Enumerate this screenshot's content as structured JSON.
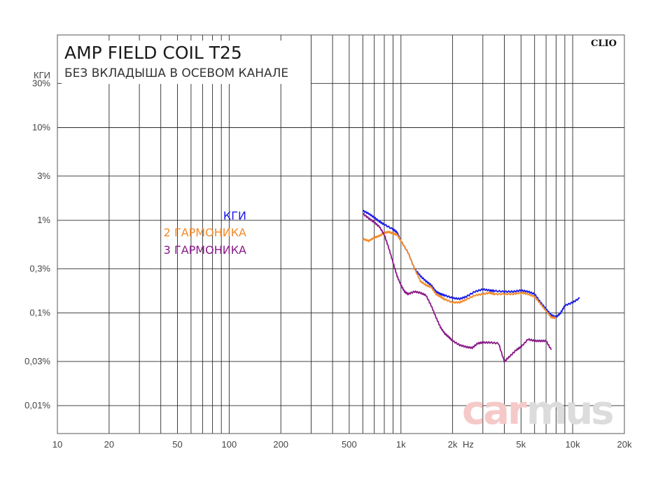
{
  "chart_data": {
    "type": "line",
    "title": "AMP FIELD COIL T25",
    "subtitle": "БЕЗ ВКЛАДЫША В ОСЕВОМ КАНАЛЕ",
    "ylabel": "КГИ",
    "xunit": "Hz",
    "brand": "CLIO",
    "watermark": [
      "car",
      "mus"
    ],
    "xscale": "log",
    "yscale": "log",
    "xlim": [
      10,
      20000
    ],
    "ylim": [
      0.005,
      100
    ],
    "grid": true,
    "x_ticks": [
      {
        "v": 10,
        "label": "10"
      },
      {
        "v": 20,
        "label": "20"
      },
      {
        "v": 50,
        "label": "50"
      },
      {
        "v": 100,
        "label": "100"
      },
      {
        "v": 200,
        "label": "200"
      },
      {
        "v": 500,
        "label": "500"
      },
      {
        "v": 1000,
        "label": "1k"
      },
      {
        "v": 2000,
        "label": "2k"
      },
      {
        "v": 5000,
        "label": "5k"
      },
      {
        "v": 10000,
        "label": "10k"
      },
      {
        "v": 20000,
        "label": "20k"
      }
    ],
    "y_ticks": [
      {
        "v": 30,
        "label": "30%"
      },
      {
        "v": 10,
        "label": "10%"
      },
      {
        "v": 3,
        "label": "3%"
      },
      {
        "v": 1,
        "label": "1%"
      },
      {
        "v": 0.3,
        "label": "0,3%"
      },
      {
        "v": 0.1,
        "label": "0,1%"
      },
      {
        "v": 0.03,
        "label": "0,03%"
      },
      {
        "v": 0.01,
        "label": "0,01%"
      }
    ],
    "legend_position": "center-left",
    "series": [
      {
        "name": "КГИ",
        "color": "#1a1ae6",
        "points": [
          [
            600,
            1.27
          ],
          [
            650,
            1.18
          ],
          [
            700,
            1.07
          ],
          [
            750,
            0.97
          ],
          [
            800,
            0.9
          ],
          [
            900,
            0.8
          ],
          [
            950,
            0.74
          ],
          [
            1000,
            0.6
          ],
          [
            1100,
            0.45
          ],
          [
            1200,
            0.3
          ],
          [
            1300,
            0.25
          ],
          [
            1400,
            0.22
          ],
          [
            1500,
            0.2
          ],
          [
            1600,
            0.17
          ],
          [
            1700,
            0.16
          ],
          [
            1800,
            0.155
          ],
          [
            2000,
            0.145
          ],
          [
            2200,
            0.142
          ],
          [
            2400,
            0.15
          ],
          [
            2700,
            0.17
          ],
          [
            3000,
            0.18
          ],
          [
            3300,
            0.175
          ],
          [
            3500,
            0.173
          ],
          [
            4000,
            0.17
          ],
          [
            4500,
            0.17
          ],
          [
            5000,
            0.175
          ],
          [
            5500,
            0.17
          ],
          [
            6000,
            0.16
          ],
          [
            6500,
            0.13
          ],
          [
            7000,
            0.11
          ],
          [
            7500,
            0.095
          ],
          [
            8000,
            0.09
          ],
          [
            8500,
            0.1
          ],
          [
            9000,
            0.12
          ],
          [
            10000,
            0.13
          ],
          [
            11000,
            0.145
          ]
        ]
      },
      {
        "name": "2 ГАРМОНИКА",
        "color": "#f28a2a",
        "points": [
          [
            600,
            0.63
          ],
          [
            650,
            0.6
          ],
          [
            700,
            0.65
          ],
          [
            750,
            0.68
          ],
          [
            800,
            0.73
          ],
          [
            850,
            0.75
          ],
          [
            900,
            0.72
          ],
          [
            950,
            0.7
          ],
          [
            1000,
            0.6
          ],
          [
            1100,
            0.45
          ],
          [
            1200,
            0.3
          ],
          [
            1300,
            0.22
          ],
          [
            1400,
            0.2
          ],
          [
            1500,
            0.19
          ],
          [
            1600,
            0.16
          ],
          [
            1700,
            0.15
          ],
          [
            1800,
            0.14
          ],
          [
            2000,
            0.13
          ],
          [
            2200,
            0.13
          ],
          [
            2400,
            0.14
          ],
          [
            2700,
            0.155
          ],
          [
            3000,
            0.16
          ],
          [
            3300,
            0.165
          ],
          [
            3500,
            0.16
          ],
          [
            4000,
            0.16
          ],
          [
            4500,
            0.16
          ],
          [
            5000,
            0.165
          ],
          [
            5500,
            0.16
          ],
          [
            6000,
            0.15
          ],
          [
            6500,
            0.125
          ],
          [
            7000,
            0.105
          ],
          [
            7500,
            0.09
          ],
          [
            8000,
            0.088
          ]
        ]
      },
      {
        "name": "3 ГАРМОНИКА",
        "color": "#8a1a8a",
        "points": [
          [
            600,
            1.18
          ],
          [
            650,
            1.05
          ],
          [
            700,
            0.95
          ],
          [
            750,
            0.85
          ],
          [
            800,
            0.7
          ],
          [
            850,
            0.5
          ],
          [
            900,
            0.35
          ],
          [
            950,
            0.25
          ],
          [
            1000,
            0.2
          ],
          [
            1050,
            0.17
          ],
          [
            1100,
            0.16
          ],
          [
            1200,
            0.17
          ],
          [
            1300,
            0.165
          ],
          [
            1400,
            0.155
          ],
          [
            1500,
            0.12
          ],
          [
            1600,
            0.09
          ],
          [
            1700,
            0.07
          ],
          [
            1800,
            0.06
          ],
          [
            1900,
            0.055
          ],
          [
            2000,
            0.05
          ],
          [
            2200,
            0.045
          ],
          [
            2400,
            0.043
          ],
          [
            2600,
            0.042
          ],
          [
            2800,
            0.047
          ],
          [
            3000,
            0.048
          ],
          [
            3300,
            0.048
          ],
          [
            3700,
            0.047
          ],
          [
            4000,
            0.03
          ],
          [
            4300,
            0.034
          ],
          [
            4700,
            0.04
          ],
          [
            5000,
            0.043
          ],
          [
            5500,
            0.052
          ],
          [
            6000,
            0.05
          ],
          [
            6500,
            0.05
          ],
          [
            7000,
            0.05
          ],
          [
            7500,
            0.04
          ]
        ]
      }
    ]
  }
}
